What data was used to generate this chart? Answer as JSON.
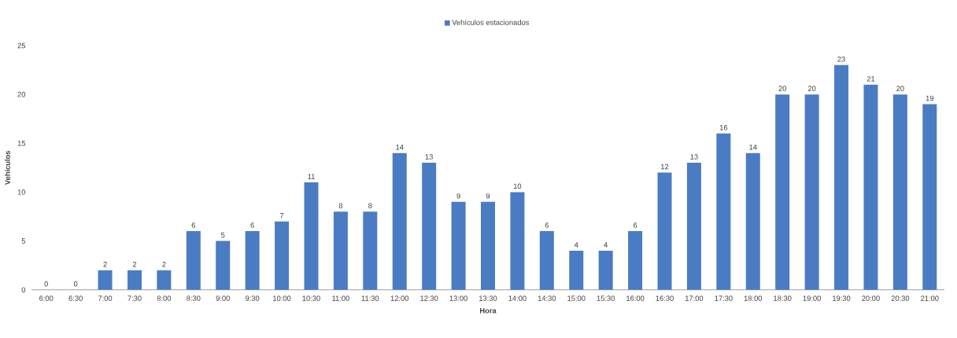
{
  "chart_data": {
    "type": "bar",
    "xlabel": "Hora",
    "ylabel": "Vehículos",
    "categories": [
      "6:00",
      "6:30",
      "7:00",
      "7:30",
      "8:00",
      "8:30",
      "9:00",
      "9:30",
      "10:00",
      "10:30",
      "11:00",
      "11:30",
      "12:00",
      "12:30",
      "13:00",
      "13:30",
      "14:00",
      "14:30",
      "15:00",
      "15:30",
      "16:00",
      "16:30",
      "17:00",
      "17:30",
      "18:00",
      "18:30",
      "19:00",
      "19:30",
      "20:00",
      "20:30",
      "21:00"
    ],
    "series": [
      {
        "name": "Vehículos estacionados",
        "color": "#4a7cc4",
        "values": [
          0,
          0,
          2,
          2,
          2,
          6,
          5,
          6,
          7,
          11,
          8,
          8,
          14,
          13,
          9,
          9,
          10,
          6,
          4,
          4,
          6,
          12,
          13,
          16,
          14,
          20,
          20,
          23,
          21,
          20,
          19
        ]
      }
    ],
    "ylim": [
      0,
      25
    ],
    "yticks": [
      0,
      5,
      10,
      15,
      20,
      25
    ],
    "data_labels": true,
    "legend": "top",
    "grid": false
  }
}
